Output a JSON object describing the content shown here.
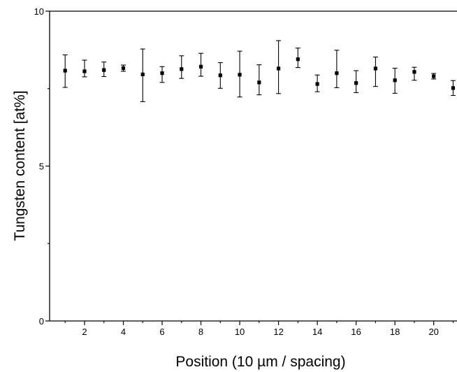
{
  "chart_data": {
    "type": "scatter",
    "title": "",
    "xlabel": "Position (10 µm / spacing)",
    "ylabel": "Tungsten content [at%]",
    "xlim": [
      0.2,
      21.2
    ],
    "ylim": [
      0,
      10
    ],
    "x_ticks_major": [
      2,
      4,
      6,
      8,
      10,
      12,
      14,
      16,
      18,
      20
    ],
    "x_ticks_minor": [
      1,
      3,
      5,
      7,
      9,
      11,
      13,
      15,
      17,
      19,
      21
    ],
    "y_ticks_major": [
      0,
      5,
      10
    ],
    "y_ticks_minor": [
      2.5,
      7.5
    ],
    "grid": false,
    "marker": "square",
    "series": [
      {
        "x": [
          1,
          2,
          3,
          4,
          5,
          6,
          7,
          8,
          9,
          10,
          11,
          12,
          13,
          14,
          15,
          16,
          17,
          18,
          19,
          20,
          21
        ],
        "y": [
          8.08,
          8.06,
          8.1,
          8.16,
          7.96,
          8.0,
          8.13,
          8.21,
          7.93,
          7.95,
          7.7,
          8.15,
          8.45,
          7.65,
          8.0,
          7.68,
          8.15,
          7.77,
          8.04,
          7.9,
          7.52
        ],
        "err_low": [
          0.54,
          0.18,
          0.21,
          0.1,
          0.88,
          0.3,
          0.3,
          0.31,
          0.42,
          0.72,
          0.4,
          0.81,
          0.27,
          0.25,
          0.47,
          0.31,
          0.58,
          0.42,
          0.27,
          0.09,
          0.24
        ],
        "err_high": [
          0.51,
          0.36,
          0.26,
          0.1,
          0.82,
          0.21,
          0.43,
          0.43,
          0.41,
          0.76,
          0.57,
          0.9,
          0.36,
          0.29,
          0.74,
          0.4,
          0.37,
          0.39,
          0.15,
          0.09,
          0.24
        ]
      }
    ]
  }
}
